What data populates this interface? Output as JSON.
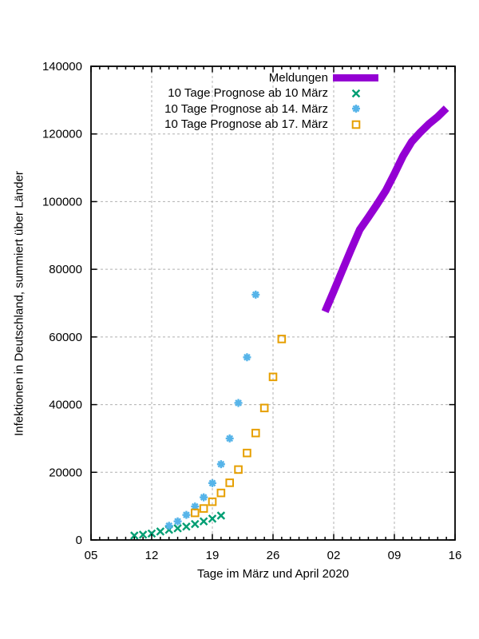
{
  "figure": {
    "background": "#ffffff",
    "text_color": "#000000",
    "grid_color": "#b0b0b0",
    "border_color": "#000000"
  },
  "legend": {
    "position": "top-right-inside",
    "items": [
      {
        "label": "Meldungen",
        "marker": "thick-line",
        "color": "#9400d3"
      },
      {
        "label": "10 Tage Prognose ab 10 März",
        "marker": "cross",
        "color": "#009e73"
      },
      {
        "label": "10 Tage Prognose ab 14. März",
        "marker": "asterisk",
        "color": "#56b4e9"
      },
      {
        "label": "10 Tage Prognose ab 17. März",
        "marker": "square",
        "color": "#e69f00"
      }
    ]
  },
  "chart_data": {
    "type": "line",
    "title": "",
    "xlabel": "Tage im März und April 2020",
    "ylabel": "Infektionen in Deutschland, summiert über Länder",
    "x_unit": "Tag (Tag 0 = 05. März 2020)",
    "x_axis": {
      "tick_labels": [
        "05",
        "12",
        "19",
        "26",
        "02",
        "09",
        "16"
      ],
      "tick_days": [
        0,
        7,
        14,
        21,
        28,
        35,
        42
      ],
      "minor_tick_every_days": 1,
      "range_days": [
        0,
        42
      ]
    },
    "y_axis": {
      "ticks": [
        0,
        20000,
        40000,
        60000,
        80000,
        100000,
        120000,
        140000
      ],
      "range": [
        0,
        140000
      ]
    },
    "grid": true,
    "series": [
      {
        "name": "Meldungen",
        "style": "line",
        "color": "#9400d3",
        "line_width": 9.5,
        "start_date": "01. April 2020",
        "days": [
          27,
          28,
          29,
          30,
          31,
          32,
          33,
          34,
          35,
          36,
          37,
          38,
          39,
          40,
          41
        ],
        "values": [
          67500,
          73500,
          79700,
          85800,
          91700,
          95400,
          99200,
          103200,
          108200,
          113500,
          117700,
          120500,
          123000,
          125100,
          127600
        ]
      },
      {
        "name": "10 Tage Prognose ab 10 März",
        "style": "scatter",
        "marker": "cross",
        "color": "#009e73",
        "start_date": "10. März 2020",
        "days": [
          5,
          6,
          7,
          8,
          9,
          10,
          11,
          12,
          13,
          14,
          15
        ],
        "values": [
          1300,
          1550,
          1900,
          2500,
          3000,
          3450,
          3950,
          4700,
          5500,
          6300,
          7200
        ]
      },
      {
        "name": "10 Tage Prognose ab 14. März",
        "style": "scatter",
        "marker": "asterisk",
        "color": "#56b4e9",
        "start_date": "14. März 2020",
        "days": [
          9,
          10,
          11,
          12,
          13,
          14,
          15,
          16,
          17,
          18,
          19
        ],
        "values": [
          4200,
          5500,
          7400,
          9900,
          12600,
          16800,
          22400,
          30000,
          40500,
          54000,
          72500
        ]
      },
      {
        "name": "10 Tage Prognose ab 17. März",
        "style": "scatter",
        "marker": "square",
        "color": "#e69f00",
        "start_date": "17. März 2020",
        "days": [
          12,
          13,
          14,
          15,
          16,
          17,
          18,
          19,
          20,
          21,
          22
        ],
        "values": [
          8000,
          9300,
          11300,
          13900,
          16900,
          20800,
          25700,
          31600,
          39000,
          48200,
          59400
        ]
      }
    ]
  }
}
